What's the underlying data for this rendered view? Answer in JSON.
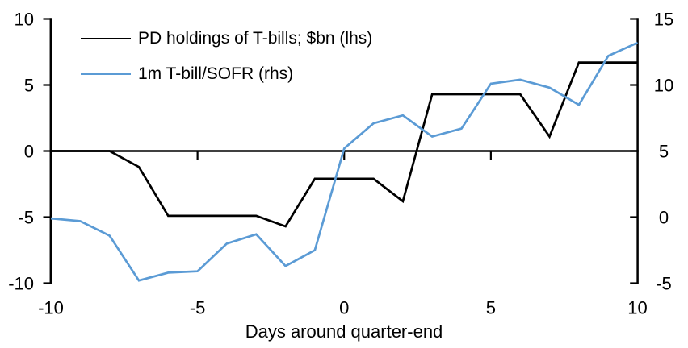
{
  "chart_data": {
    "type": "line",
    "title": "",
    "xlabel": "Days around quarter-end",
    "x": [
      -10,
      -9,
      -8,
      -7,
      -6,
      -5,
      -4,
      -3,
      -2,
      -1,
      0,
      1,
      2,
      3,
      4,
      5,
      6,
      7,
      8,
      9,
      10
    ],
    "xlim": [
      -10,
      10
    ],
    "x_ticks": [
      -10,
      -5,
      0,
      5,
      10
    ],
    "left_axis": {
      "min": -10,
      "max": 10,
      "ticks": [
        10,
        5,
        0,
        -5,
        -10
      ]
    },
    "right_axis": {
      "min": -5,
      "max": 15,
      "ticks": [
        15,
        10,
        5,
        0,
        -5
      ]
    },
    "grid": false,
    "legend_position": "top-left",
    "axis_color": "#000000",
    "series": [
      {
        "name": "PD holdings of T-bills; $bn (lhs)",
        "axis": "left",
        "color": "#000000",
        "values": [
          0,
          0,
          0,
          -1.2,
          -4.9,
          -4.9,
          -4.9,
          -4.9,
          -5.7,
          -2.1,
          -2.1,
          -2.1,
          -3.8,
          4.3,
          4.3,
          4.3,
          4.3,
          1.1,
          6.7,
          6.7,
          6.7
        ]
      },
      {
        "name": "1m T-bill/SOFR (rhs)",
        "axis": "right",
        "color": "#5B9BD5",
        "values": [
          -0.1,
          -0.3,
          -1.4,
          -4.8,
          -4.2,
          -4.1,
          -2.0,
          -1.3,
          -3.7,
          -2.5,
          5.2,
          7.1,
          7.7,
          6.1,
          6.7,
          10.1,
          10.4,
          9.8,
          8.5,
          12.2,
          13.2
        ]
      }
    ]
  }
}
